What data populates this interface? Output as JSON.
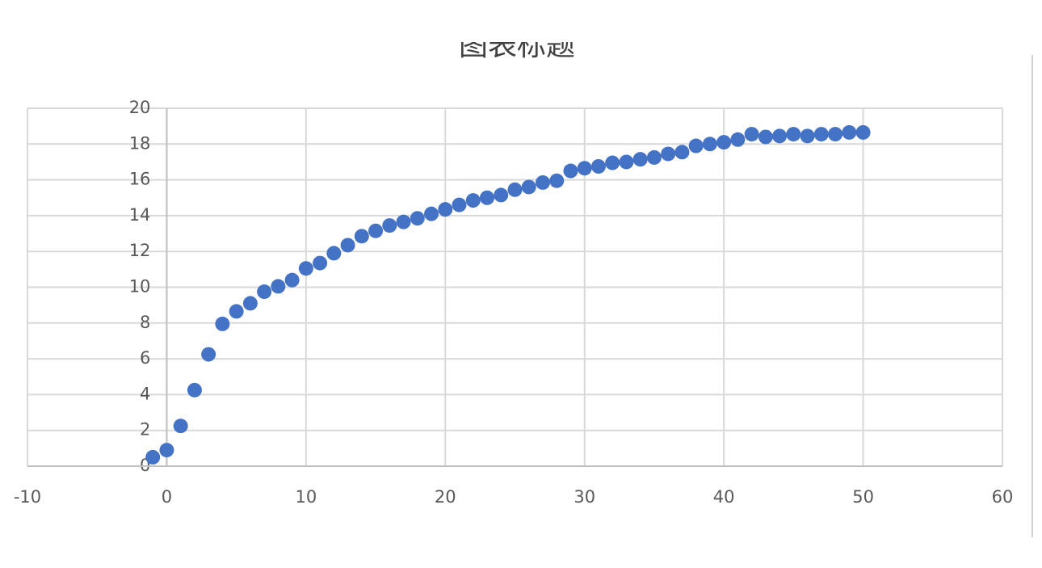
{
  "chart_data": {
    "type": "scatter",
    "title": "图表标题",
    "x": [
      -1,
      0,
      1,
      2,
      3,
      4,
      5,
      6,
      7,
      8,
      9,
      10,
      11,
      12,
      13,
      14,
      15,
      16,
      17,
      18,
      19,
      20,
      21,
      22,
      23,
      24,
      25,
      26,
      27,
      28,
      29,
      30,
      31,
      32,
      33,
      34,
      35,
      36,
      37,
      38,
      39,
      40,
      41,
      42,
      43,
      44,
      45,
      46,
      47,
      48,
      49,
      50
    ],
    "values": [
      0.5,
      0.9,
      2.25,
      4.25,
      6.25,
      7.95,
      8.65,
      9.1,
      9.75,
      10.05,
      10.4,
      11.05,
      11.35,
      11.9,
      12.35,
      12.85,
      13.15,
      13.45,
      13.65,
      13.85,
      14.1,
      14.35,
      14.6,
      14.85,
      15.0,
      15.15,
      15.45,
      15.6,
      15.85,
      15.95,
      16.5,
      16.65,
      16.75,
      16.95,
      17.0,
      17.15,
      17.25,
      17.45,
      17.55,
      17.9,
      18.0,
      18.1,
      18.25,
      18.55,
      18.4,
      18.45,
      18.55,
      18.45,
      18.55,
      18.55,
      18.65,
      18.65
    ],
    "color": "#4472c4",
    "xlim": [
      -10,
      60
    ],
    "xticks": [
      -10,
      0,
      10,
      20,
      30,
      40,
      50,
      60
    ],
    "ylim": [
      0,
      20
    ],
    "yticks": [
      0,
      2,
      4,
      6,
      8,
      10,
      12,
      14,
      16,
      18,
      20
    ],
    "grid": true
  }
}
